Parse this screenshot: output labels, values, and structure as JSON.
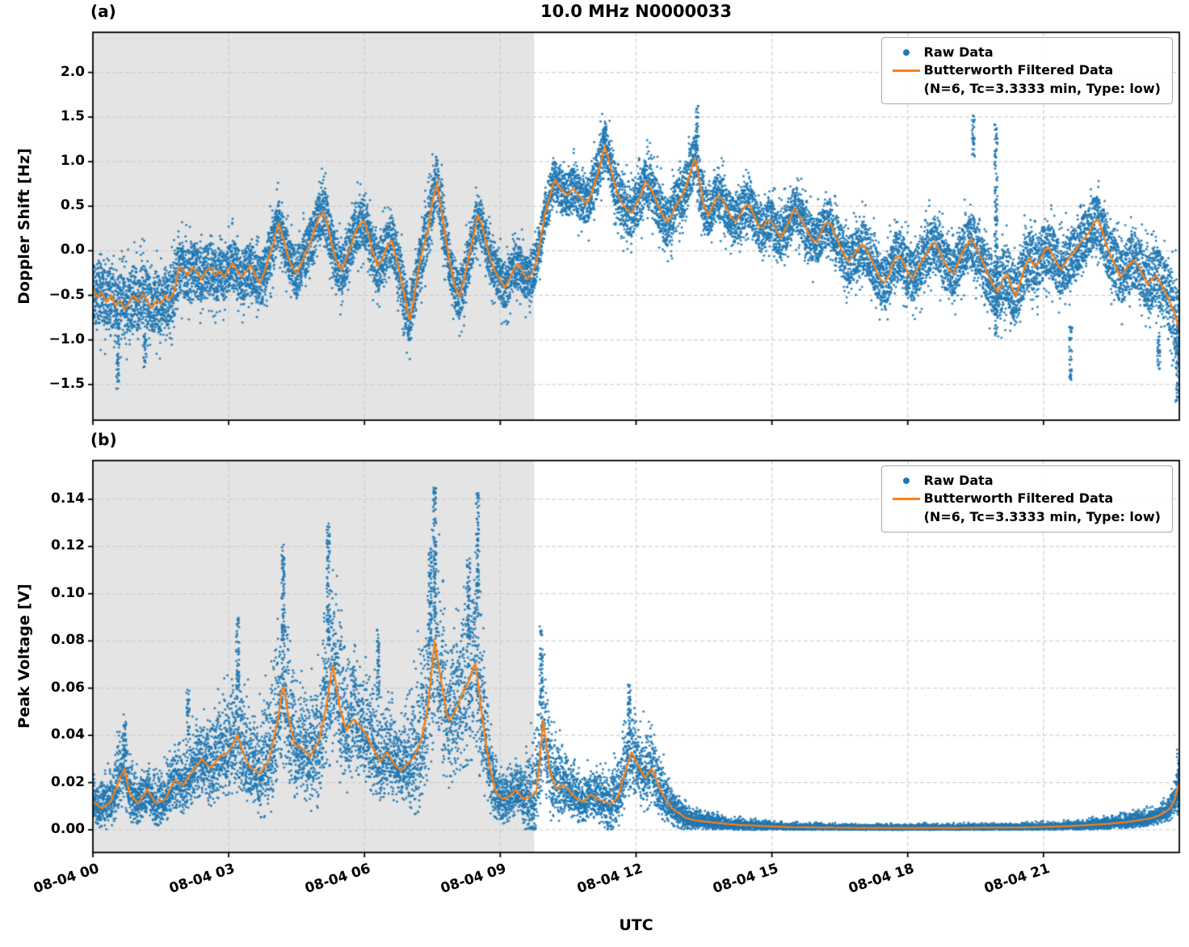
{
  "figure": {
    "title": "10.0 MHz N0000033",
    "panel_a_tag": "(a)",
    "panel_b_tag": "(b)",
    "xlabel": "UTC",
    "colors": {
      "raw": "#1f77b4",
      "filtered": "#ff7f0e",
      "shade": "#e4e4e4",
      "grid": "#c7c7c7",
      "axis": "#000000",
      "legend_border": "#aaaaaa"
    },
    "legend": {
      "raw_label": "Raw Data",
      "filtered_label": "Butterworth Filtered Data",
      "filtered_sublabel": "(N=6, Tc=3.3333 min, Type: low)"
    }
  },
  "chart_data": [
    {
      "type": "scatter",
      "panel": "a",
      "ylabel": "Doppler Shift [Hz]",
      "xlabel": "UTC",
      "x_axis": "time (hours after 2021-08-04 00:00 UTC)",
      "xlim_hours": [
        0,
        24
      ],
      "ylim": [
        -1.9,
        2.45
      ],
      "yticks": [
        2.0,
        1.5,
        1.0,
        0.5,
        0.0,
        -0.5,
        -1.0,
        -1.5
      ],
      "ytick_labels": [
        "2.0",
        "1.5",
        "1.0",
        "0.5",
        "0.0",
        "−0.5",
        "−1.0",
        "−1.5"
      ],
      "xticks_hours": [
        0,
        3,
        6,
        9,
        12,
        15,
        18,
        21
      ],
      "xtick_labels": [
        "08-04 00",
        "08-04 03",
        "08-04 06",
        "08-04 09",
        "08-04 12",
        "08-04 15",
        "08-04 18",
        "08-04 21"
      ],
      "grid": true,
      "legend_position": "upper right",
      "shade_region_hours": [
        0,
        9.75
      ],
      "series": {
        "filtered_uniform": {
          "name": "Butterworth Filtered Data",
          "t0": 0.0,
          "dt": 0.1,
          "v": [
            -0.42,
            -0.52,
            -0.46,
            -0.58,
            -0.5,
            -0.62,
            -0.55,
            -0.66,
            -0.58,
            -0.5,
            -0.58,
            -0.48,
            -0.56,
            -0.65,
            -0.55,
            -0.6,
            -0.5,
            -0.55,
            -0.45,
            -0.18,
            -0.22,
            -0.28,
            -0.18,
            -0.25,
            -0.32,
            -0.22,
            -0.18,
            -0.28,
            -0.22,
            -0.3,
            -0.2,
            -0.14,
            -0.24,
            -0.3,
            -0.22,
            -0.16,
            -0.3,
            -0.36,
            -0.22,
            -0.05,
            0.1,
            0.32,
            0.15,
            -0.05,
            -0.18,
            -0.26,
            -0.15,
            -0.02,
            0.08,
            0.25,
            0.38,
            0.44,
            0.25,
            0.02,
            -0.15,
            -0.22,
            -0.08,
            0.05,
            0.22,
            0.3,
            0.33,
            0.15,
            -0.05,
            -0.18,
            -0.08,
            0.05,
            0.12,
            -0.08,
            -0.3,
            -0.55,
            -0.8,
            -0.5,
            -0.18,
            0.05,
            0.22,
            0.55,
            0.76,
            0.45,
            0.12,
            -0.18,
            -0.4,
            -0.52,
            -0.32,
            -0.08,
            0.15,
            0.4,
            0.28,
            0.05,
            -0.12,
            -0.25,
            -0.32,
            -0.42,
            -0.32,
            -0.2,
            -0.14,
            -0.25,
            -0.32,
            -0.25,
            -0.12,
            0.15,
            0.45,
            0.62,
            0.8,
            0.72,
            0.66,
            0.62,
            0.7,
            0.64,
            0.58,
            0.52,
            0.62,
            0.78,
            0.95,
            1.18,
            1.02,
            0.8,
            0.62,
            0.52,
            0.46,
            0.42,
            0.52,
            0.62,
            0.78,
            0.72,
            0.62,
            0.5,
            0.38,
            0.32,
            0.42,
            0.52,
            0.6,
            0.72,
            0.88,
            1.05,
            0.78,
            0.5,
            0.4,
            0.52,
            0.62,
            0.58,
            0.48,
            0.38,
            0.32,
            0.4,
            0.5,
            0.52,
            0.4,
            0.28,
            0.25,
            0.35,
            0.32,
            0.22,
            0.15,
            0.25,
            0.35,
            0.48,
            0.4,
            0.3,
            0.2,
            0.12,
            0.1,
            0.22,
            0.32,
            0.3,
            0.18,
            0.05,
            -0.05,
            -0.12,
            -0.05,
            0.02,
            0.08,
            0.0,
            -0.1,
            -0.22,
            -0.32,
            -0.36,
            -0.25,
            -0.1,
            -0.05,
            -0.12,
            -0.25,
            -0.32,
            -0.22,
            -0.12,
            -0.05,
            0.05,
            0.1,
            0.0,
            -0.12,
            -0.2,
            -0.26,
            -0.15,
            -0.02,
            0.06,
            0.14,
            0.05,
            -0.05,
            -0.18,
            -0.3,
            -0.4,
            -0.46,
            -0.32,
            -0.25,
            -0.42,
            -0.5,
            -0.32,
            -0.15,
            -0.08,
            -0.18,
            -0.12,
            -0.02,
            0.05,
            -0.04,
            -0.15,
            -0.22,
            -0.12,
            -0.05,
            0.0,
            0.08,
            0.14,
            0.2,
            0.3,
            0.36,
            0.22,
            0.05,
            -0.08,
            -0.18,
            -0.3,
            -0.22,
            -0.15,
            -0.1,
            -0.18,
            -0.28,
            -0.38,
            -0.32,
            -0.28,
            -0.38,
            -0.48,
            -0.58,
            -0.72,
            -0.88
          ]
        },
        "raw_envelope_halfwidth": [
          [
            0,
            0.42
          ],
          [
            1,
            0.45
          ],
          [
            2,
            0.38
          ],
          [
            3,
            0.35
          ],
          [
            4,
            0.35
          ],
          [
            5,
            0.35
          ],
          [
            6,
            0.35
          ],
          [
            7,
            0.38
          ],
          [
            8,
            0.35
          ],
          [
            9,
            0.32
          ],
          [
            10,
            0.3
          ],
          [
            11,
            0.32
          ],
          [
            12,
            0.35
          ],
          [
            13,
            0.35
          ],
          [
            14,
            0.32
          ],
          [
            15,
            0.32
          ],
          [
            16,
            0.32
          ],
          [
            17,
            0.35
          ],
          [
            18,
            0.38
          ],
          [
            19,
            0.35
          ],
          [
            20,
            0.42
          ],
          [
            21,
            0.38
          ],
          [
            22,
            0.36
          ],
          [
            23,
            0.4
          ],
          [
            23.8,
            0.45
          ],
          [
            24,
            0.55
          ]
        ],
        "raw_outlier_columns": [
          [
            0.55,
            -1.55,
            -0.95
          ],
          [
            1.15,
            -1.32,
            -0.95
          ],
          [
            11.3,
            1.2,
            1.46
          ],
          [
            13.35,
            1.1,
            1.63
          ],
          [
            19.45,
            1.05,
            1.52
          ],
          [
            19.95,
            -0.95,
            1.42
          ],
          [
            21.6,
            -1.45,
            -0.85
          ],
          [
            23.55,
            -1.35,
            -0.92
          ],
          [
            23.95,
            -1.72,
            -0.85
          ]
        ]
      }
    },
    {
      "type": "scatter",
      "panel": "b",
      "ylabel": "Peak Voltage [V]",
      "xlabel": "UTC",
      "x_axis": "time (hours after 2021-08-04 00:00 UTC)",
      "xlim_hours": [
        0,
        24
      ],
      "ylim": [
        -0.0096,
        0.1564
      ],
      "value_floor": 0,
      "yticks": [
        0.14,
        0.12,
        0.1,
        0.08,
        0.06,
        0.04,
        0.02,
        0.0
      ],
      "ytick_labels": [
        "0.14",
        "0.12",
        "0.10",
        "0.08",
        "0.06",
        "0.04",
        "0.02",
        "0.00"
      ],
      "xticks_hours": [
        0,
        3,
        6,
        9,
        12,
        15,
        18,
        21
      ],
      "xtick_labels": [
        "08-04 00",
        "08-04 03",
        "08-04 06",
        "08-04 09",
        "08-04 12",
        "08-04 15",
        "08-04 18",
        "08-04 21"
      ],
      "grid": true,
      "legend_position": "upper right",
      "shade_region_hours": [
        0,
        9.75
      ],
      "series": {
        "filtered_pairs": [
          [
            0,
            0.012
          ],
          [
            0.2,
            0.009
          ],
          [
            0.4,
            0.012
          ],
          [
            0.6,
            0.022
          ],
          [
            0.7,
            0.026
          ],
          [
            0.8,
            0.016
          ],
          [
            1,
            0.011
          ],
          [
            1.2,
            0.017
          ],
          [
            1.4,
            0.011
          ],
          [
            1.6,
            0.013
          ],
          [
            1.8,
            0.021
          ],
          [
            2,
            0.019
          ],
          [
            2.2,
            0.025
          ],
          [
            2.4,
            0.03
          ],
          [
            2.6,
            0.026
          ],
          [
            2.8,
            0.031
          ],
          [
            3,
            0.033
          ],
          [
            3.2,
            0.04
          ],
          [
            3.35,
            0.031
          ],
          [
            3.5,
            0.026
          ],
          [
            3.7,
            0.024
          ],
          [
            3.9,
            0.03
          ],
          [
            4.1,
            0.048
          ],
          [
            4.2,
            0.062
          ],
          [
            4.3,
            0.05
          ],
          [
            4.45,
            0.036
          ],
          [
            4.6,
            0.035
          ],
          [
            4.8,
            0.031
          ],
          [
            5,
            0.038
          ],
          [
            5.15,
            0.052
          ],
          [
            5.3,
            0.07
          ],
          [
            5.45,
            0.052
          ],
          [
            5.6,
            0.042
          ],
          [
            5.75,
            0.047
          ],
          [
            5.9,
            0.044
          ],
          [
            6.05,
            0.04
          ],
          [
            6.2,
            0.034
          ],
          [
            6.35,
            0.029
          ],
          [
            6.5,
            0.033
          ],
          [
            6.65,
            0.028
          ],
          [
            6.8,
            0.025
          ],
          [
            6.95,
            0.028
          ],
          [
            7.1,
            0.031
          ],
          [
            7.25,
            0.038
          ],
          [
            7.4,
            0.052
          ],
          [
            7.55,
            0.08
          ],
          [
            7.7,
            0.062
          ],
          [
            7.85,
            0.046
          ],
          [
            8,
            0.05
          ],
          [
            8.15,
            0.057
          ],
          [
            8.3,
            0.063
          ],
          [
            8.45,
            0.071
          ],
          [
            8.6,
            0.048
          ],
          [
            8.75,
            0.028
          ],
          [
            8.9,
            0.016
          ],
          [
            9.05,
            0.013
          ],
          [
            9.2,
            0.014
          ],
          [
            9.35,
            0.017
          ],
          [
            9.5,
            0.013
          ],
          [
            9.65,
            0.014
          ],
          [
            9.8,
            0.016
          ],
          [
            9.95,
            0.046
          ],
          [
            10.1,
            0.024
          ],
          [
            10.25,
            0.017
          ],
          [
            10.4,
            0.019
          ],
          [
            10.55,
            0.016
          ],
          [
            10.7,
            0.013
          ],
          [
            10.85,
            0.012
          ],
          [
            11,
            0.015
          ],
          [
            11.15,
            0.013
          ],
          [
            11.3,
            0.012
          ],
          [
            11.45,
            0.011
          ],
          [
            11.6,
            0.014
          ],
          [
            11.75,
            0.024
          ],
          [
            11.9,
            0.033
          ],
          [
            12.05,
            0.027
          ],
          [
            12.2,
            0.022
          ],
          [
            12.35,
            0.026
          ],
          [
            12.5,
            0.018
          ],
          [
            12.65,
            0.013
          ],
          [
            12.8,
            0.009
          ],
          [
            12.95,
            0.007
          ],
          [
            13.1,
            0.005
          ],
          [
            13.3,
            0.004
          ],
          [
            13.5,
            0.0035
          ],
          [
            13.75,
            0.003
          ],
          [
            14,
            0.0025
          ],
          [
            14.3,
            0.002
          ],
          [
            14.6,
            0.0018
          ],
          [
            15,
            0.0014
          ],
          [
            15.5,
            0.0011
          ],
          [
            16,
            0.001
          ],
          [
            16.5,
            0.0009
          ],
          [
            17,
            0.0008
          ],
          [
            17.5,
            0.0008
          ],
          [
            18,
            0.0008
          ],
          [
            18.5,
            0.0008
          ],
          [
            19,
            0.0008
          ],
          [
            19.5,
            0.0009
          ],
          [
            20,
            0.001
          ],
          [
            20.5,
            0.001
          ],
          [
            21,
            0.0012
          ],
          [
            21.5,
            0.0015
          ],
          [
            22,
            0.002
          ],
          [
            22.4,
            0.0025
          ],
          [
            22.8,
            0.0032
          ],
          [
            23.1,
            0.004
          ],
          [
            23.4,
            0.005
          ],
          [
            23.6,
            0.0065
          ],
          [
            23.8,
            0.009
          ],
          [
            23.9,
            0.013
          ],
          [
            24,
            0.02
          ]
        ],
        "raw_envelope_halfwidth": [
          [
            0,
            0.006
          ],
          [
            0.7,
            0.012
          ],
          [
            1,
            0.007
          ],
          [
            1.5,
            0.008
          ],
          [
            2,
            0.01
          ],
          [
            2.5,
            0.013
          ],
          [
            3,
            0.015
          ],
          [
            3.2,
            0.02
          ],
          [
            3.6,
            0.013
          ],
          [
            4.2,
            0.028
          ],
          [
            4.6,
            0.015
          ],
          [
            5.3,
            0.03
          ],
          [
            5.8,
            0.018
          ],
          [
            6.2,
            0.016
          ],
          [
            6.8,
            0.012
          ],
          [
            7.55,
            0.033
          ],
          [
            8,
            0.022
          ],
          [
            8.45,
            0.033
          ],
          [
            8.9,
            0.009
          ],
          [
            9.4,
            0.008
          ],
          [
            9.95,
            0.02
          ],
          [
            10.4,
            0.009
          ],
          [
            11,
            0.007
          ],
          [
            11.9,
            0.013
          ],
          [
            12.35,
            0.012
          ],
          [
            12.8,
            0.006
          ],
          [
            13.3,
            0.003
          ],
          [
            14,
            0.0018
          ],
          [
            15,
            0.0012
          ],
          [
            16,
            0.001
          ],
          [
            18,
            0.001
          ],
          [
            20,
            0.001
          ],
          [
            21.5,
            0.0012
          ],
          [
            22.5,
            0.0018
          ],
          [
            23.4,
            0.0025
          ],
          [
            23.8,
            0.004
          ],
          [
            24,
            0.007
          ]
        ],
        "raw_outlier_columns": [
          [
            0.7,
            0.03,
            0.046
          ],
          [
            2.1,
            0.04,
            0.06
          ],
          [
            3.2,
            0.06,
            0.091
          ],
          [
            4.2,
            0.075,
            0.121
          ],
          [
            5.2,
            0.08,
            0.13
          ],
          [
            6.3,
            0.055,
            0.085
          ],
          [
            7.45,
            0.08,
            0.12
          ],
          [
            7.55,
            0.09,
            0.145
          ],
          [
            8.3,
            0.08,
            0.115
          ],
          [
            8.5,
            0.09,
            0.143
          ],
          [
            9.9,
            0.05,
            0.087
          ],
          [
            11.85,
            0.04,
            0.063
          ],
          [
            23.98,
            0.006,
            0.035
          ]
        ]
      }
    }
  ]
}
